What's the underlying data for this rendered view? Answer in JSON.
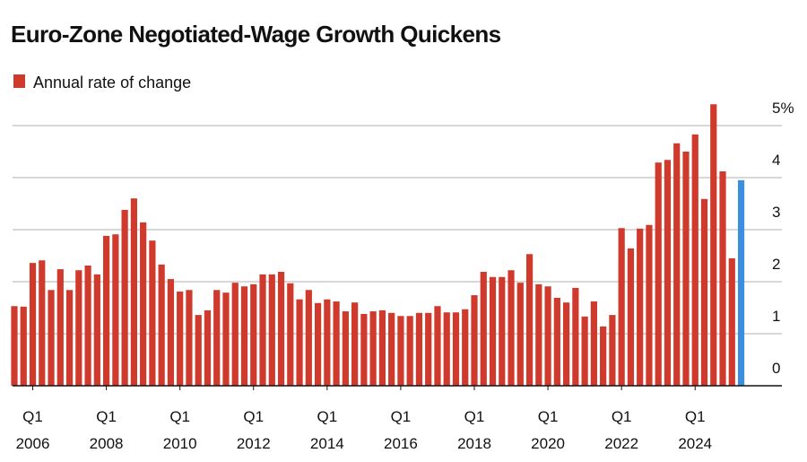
{
  "chart_data": {
    "type": "bar",
    "title": "Euro-Zone Negotiated-Wage Growth Quickens",
    "series": [
      {
        "name": "Annual rate of change",
        "color": "#cf3a2d",
        "colors": [
          "#cf3a2d",
          "#cf3a2d",
          "#cf3a2d",
          "#cf3a2d",
          "#cf3a2d",
          "#cf3a2d",
          "#cf3a2d",
          "#cf3a2d",
          "#cf3a2d",
          "#cf3a2d",
          "#cf3a2d",
          "#cf3a2d",
          "#cf3a2d",
          "#cf3a2d",
          "#cf3a2d",
          "#cf3a2d",
          "#cf3a2d",
          "#cf3a2d",
          "#cf3a2d",
          "#cf3a2d",
          "#cf3a2d",
          "#cf3a2d",
          "#cf3a2d",
          "#cf3a2d",
          "#cf3a2d",
          "#cf3a2d",
          "#cf3a2d",
          "#cf3a2d",
          "#cf3a2d",
          "#cf3a2d",
          "#cf3a2d",
          "#cf3a2d",
          "#cf3a2d",
          "#cf3a2d",
          "#cf3a2d",
          "#cf3a2d",
          "#cf3a2d",
          "#cf3a2d",
          "#cf3a2d",
          "#cf3a2d",
          "#cf3a2d",
          "#cf3a2d",
          "#cf3a2d",
          "#cf3a2d",
          "#cf3a2d",
          "#cf3a2d",
          "#cf3a2d",
          "#cf3a2d",
          "#cf3a2d",
          "#cf3a2d",
          "#cf3a2d",
          "#cf3a2d",
          "#cf3a2d",
          "#cf3a2d",
          "#cf3a2d",
          "#cf3a2d",
          "#cf3a2d",
          "#cf3a2d",
          "#cf3a2d",
          "#cf3a2d",
          "#cf3a2d",
          "#cf3a2d",
          "#cf3a2d",
          "#cf3a2d",
          "#cf3a2d",
          "#cf3a2d",
          "#cf3a2d",
          "#cf3a2d",
          "#cf3a2d",
          "#cf3a2d",
          "#cf3a2d",
          "#cf3a2d",
          "#cf3a2d",
          "#cf3a2d",
          "#cf3a2d",
          "#cf3a2d",
          "#cf3a2d",
          "#cf3a2d",
          "#cf3a2d",
          "#3b8fde"
        ],
        "values": [
          1.53,
          1.52,
          2.36,
          2.41,
          1.84,
          2.24,
          1.84,
          2.22,
          2.31,
          2.14,
          2.88,
          2.91,
          3.38,
          3.6,
          3.14,
          2.79,
          2.33,
          2.05,
          1.81,
          1.84,
          1.36,
          1.45,
          1.84,
          1.79,
          1.98,
          1.91,
          1.95,
          2.14,
          2.14,
          2.19,
          1.97,
          1.66,
          1.84,
          1.59,
          1.66,
          1.62,
          1.43,
          1.6,
          1.38,
          1.43,
          1.45,
          1.4,
          1.34,
          1.34,
          1.4,
          1.4,
          1.53,
          1.41,
          1.41,
          1.47,
          1.74,
          2.19,
          2.09,
          2.09,
          2.22,
          1.98,
          2.53,
          1.95,
          1.91,
          1.69,
          1.6,
          1.88,
          1.33,
          1.62,
          1.14,
          1.36,
          3.03,
          2.64,
          3.02,
          3.09,
          4.29,
          4.34,
          4.66,
          4.5,
          4.83,
          3.59,
          5.41,
          4.12,
          2.45,
          3.95
        ]
      }
    ],
    "categories": [
      null,
      null,
      "Q1 2006",
      null,
      null,
      null,
      null,
      null,
      null,
      null,
      "Q1 2008",
      null,
      null,
      null,
      null,
      null,
      null,
      null,
      "Q1 2010",
      null,
      null,
      null,
      null,
      null,
      null,
      null,
      "Q1 2012",
      null,
      null,
      null,
      null,
      null,
      null,
      null,
      "Q1 2014",
      null,
      null,
      null,
      null,
      null,
      null,
      null,
      "Q1 2016",
      null,
      null,
      null,
      null,
      null,
      null,
      null,
      "Q1 2018",
      null,
      null,
      null,
      null,
      null,
      null,
      null,
      "Q1 2020",
      null,
      null,
      null,
      null,
      null,
      null,
      null,
      "Q1 2022",
      null,
      null,
      null,
      null,
      null,
      null,
      null,
      "Q1 2024",
      null,
      null,
      null,
      null,
      null
    ],
    "ylim": [
      0,
      5.5
    ],
    "yticks": [
      0,
      1,
      2,
      3,
      4,
      {
        "value": 5,
        "label": "5%"
      }
    ],
    "grid": true
  }
}
